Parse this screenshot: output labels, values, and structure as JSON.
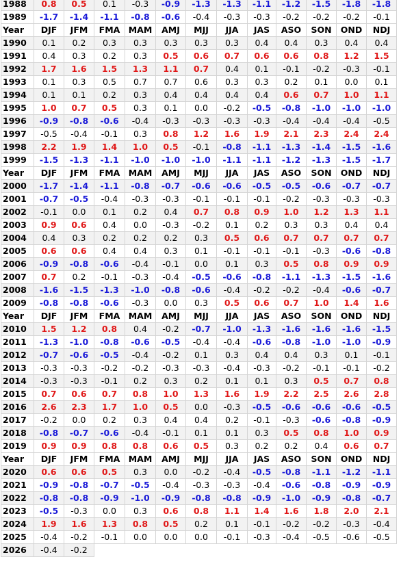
{
  "seasons": [
    "DJF",
    "JFM",
    "FMA",
    "MAM",
    "AMJ",
    "MJJ",
    "JJA",
    "JAS",
    "ASO",
    "SON",
    "OND",
    "NDJ"
  ],
  "header_label": "Year",
  "colors": {
    "warm": "#e01818",
    "cool": "#1a1ad8",
    "neutral": "#000000"
  },
  "rows": [
    {
      "year": "1988",
      "values": [
        "0.8",
        "0.5",
        "0.1",
        "-0.3",
        "-0.9",
        "-1.3",
        "-1.3",
        "-1.1",
        "-1.2",
        "-1.5",
        "-1.8",
        "-1.8"
      ],
      "phase": [
        "w",
        "w",
        "n",
        "n",
        "c",
        "c",
        "c",
        "c",
        "c",
        "c",
        "c",
        "c"
      ]
    },
    {
      "year": "1989",
      "values": [
        "-1.7",
        "-1.4",
        "-1.1",
        "-0.8",
        "-0.6",
        "-0.4",
        "-0.3",
        "-0.3",
        "-0.2",
        "-0.2",
        "-0.2",
        "-0.1"
      ],
      "phase": [
        "c",
        "c",
        "c",
        "c",
        "c",
        "n",
        "n",
        "n",
        "n",
        "n",
        "n",
        "n"
      ]
    },
    {
      "header": true
    },
    {
      "year": "1990",
      "values": [
        "0.1",
        "0.2",
        "0.3",
        "0.3",
        "0.3",
        "0.3",
        "0.3",
        "0.4",
        "0.4",
        "0.3",
        "0.4",
        "0.4"
      ],
      "phase": [
        "n",
        "n",
        "n",
        "n",
        "n",
        "n",
        "n",
        "n",
        "n",
        "n",
        "n",
        "n"
      ]
    },
    {
      "year": "1991",
      "values": [
        "0.4",
        "0.3",
        "0.2",
        "0.3",
        "0.5",
        "0.6",
        "0.7",
        "0.6",
        "0.6",
        "0.8",
        "1.2",
        "1.5"
      ],
      "phase": [
        "n",
        "n",
        "n",
        "n",
        "w",
        "w",
        "w",
        "w",
        "w",
        "w",
        "w",
        "w"
      ]
    },
    {
      "year": "1992",
      "values": [
        "1.7",
        "1.6",
        "1.5",
        "1.3",
        "1.1",
        "0.7",
        "0.4",
        "0.1",
        "-0.1",
        "-0.2",
        "-0.3",
        "-0.1"
      ],
      "phase": [
        "w",
        "w",
        "w",
        "w",
        "w",
        "w",
        "n",
        "n",
        "n",
        "n",
        "n",
        "n"
      ]
    },
    {
      "year": "1993",
      "values": [
        "0.1",
        "0.3",
        "0.5",
        "0.7",
        "0.7",
        "0.6",
        "0.3",
        "0.3",
        "0.2",
        "0.1",
        "0.0",
        "0.1"
      ],
      "phase": [
        "n",
        "n",
        "n",
        "n",
        "n",
        "n",
        "n",
        "n",
        "n",
        "n",
        "n",
        "n"
      ]
    },
    {
      "year": "1994",
      "values": [
        "0.1",
        "0.1",
        "0.2",
        "0.3",
        "0.4",
        "0.4",
        "0.4",
        "0.4",
        "0.6",
        "0.7",
        "1.0",
        "1.1"
      ],
      "phase": [
        "n",
        "n",
        "n",
        "n",
        "n",
        "n",
        "n",
        "n",
        "w",
        "w",
        "w",
        "w"
      ]
    },
    {
      "year": "1995",
      "values": [
        "1.0",
        "0.7",
        "0.5",
        "0.3",
        "0.1",
        "0.0",
        "-0.2",
        "-0.5",
        "-0.8",
        "-1.0",
        "-1.0",
        "-1.0"
      ],
      "phase": [
        "w",
        "w",
        "w",
        "n",
        "n",
        "n",
        "n",
        "c",
        "c",
        "c",
        "c",
        "c"
      ]
    },
    {
      "year": "1996",
      "values": [
        "-0.9",
        "-0.8",
        "-0.6",
        "-0.4",
        "-0.3",
        "-0.3",
        "-0.3",
        "-0.3",
        "-0.4",
        "-0.4",
        "-0.4",
        "-0.5"
      ],
      "phase": [
        "c",
        "c",
        "c",
        "n",
        "n",
        "n",
        "n",
        "n",
        "n",
        "n",
        "n",
        "n"
      ]
    },
    {
      "year": "1997",
      "values": [
        "-0.5",
        "-0.4",
        "-0.1",
        "0.3",
        "0.8",
        "1.2",
        "1.6",
        "1.9",
        "2.1",
        "2.3",
        "2.4",
        "2.4"
      ],
      "phase": [
        "n",
        "n",
        "n",
        "n",
        "w",
        "w",
        "w",
        "w",
        "w",
        "w",
        "w",
        "w"
      ]
    },
    {
      "year": "1998",
      "values": [
        "2.2",
        "1.9",
        "1.4",
        "1.0",
        "0.5",
        "-0.1",
        "-0.8",
        "-1.1",
        "-1.3",
        "-1.4",
        "-1.5",
        "-1.6"
      ],
      "phase": [
        "w",
        "w",
        "w",
        "w",
        "w",
        "n",
        "c",
        "c",
        "c",
        "c",
        "c",
        "c"
      ]
    },
    {
      "year": "1999",
      "values": [
        "-1.5",
        "-1.3",
        "-1.1",
        "-1.0",
        "-1.0",
        "-1.0",
        "-1.1",
        "-1.1",
        "-1.2",
        "-1.3",
        "-1.5",
        "-1.7"
      ],
      "phase": [
        "c",
        "c",
        "c",
        "c",
        "c",
        "c",
        "c",
        "c",
        "c",
        "c",
        "c",
        "c"
      ]
    },
    {
      "header": true
    },
    {
      "year": "2000",
      "values": [
        "-1.7",
        "-1.4",
        "-1.1",
        "-0.8",
        "-0.7",
        "-0.6",
        "-0.6",
        "-0.5",
        "-0.5",
        "-0.6",
        "-0.7",
        "-0.7"
      ],
      "phase": [
        "c",
        "c",
        "c",
        "c",
        "c",
        "c",
        "c",
        "c",
        "c",
        "c",
        "c",
        "c"
      ]
    },
    {
      "year": "2001",
      "values": [
        "-0.7",
        "-0.5",
        "-0.4",
        "-0.3",
        "-0.3",
        "-0.1",
        "-0.1",
        "-0.1",
        "-0.2",
        "-0.3",
        "-0.3",
        "-0.3"
      ],
      "phase": [
        "c",
        "c",
        "n",
        "n",
        "n",
        "n",
        "n",
        "n",
        "n",
        "n",
        "n",
        "n"
      ]
    },
    {
      "year": "2002",
      "values": [
        "-0.1",
        "0.0",
        "0.1",
        "0.2",
        "0.4",
        "0.7",
        "0.8",
        "0.9",
        "1.0",
        "1.2",
        "1.3",
        "1.1"
      ],
      "phase": [
        "n",
        "n",
        "n",
        "n",
        "n",
        "w",
        "w",
        "w",
        "w",
        "w",
        "w",
        "w"
      ]
    },
    {
      "year": "2003",
      "values": [
        "0.9",
        "0.6",
        "0.4",
        "0.0",
        "-0.3",
        "-0.2",
        "0.1",
        "0.2",
        "0.3",
        "0.3",
        "0.4",
        "0.4"
      ],
      "phase": [
        "w",
        "w",
        "n",
        "n",
        "n",
        "n",
        "n",
        "n",
        "n",
        "n",
        "n",
        "n"
      ]
    },
    {
      "year": "2004",
      "values": [
        "0.4",
        "0.3",
        "0.2",
        "0.2",
        "0.2",
        "0.3",
        "0.5",
        "0.6",
        "0.7",
        "0.7",
        "0.7",
        "0.7"
      ],
      "phase": [
        "n",
        "n",
        "n",
        "n",
        "n",
        "n",
        "w",
        "w",
        "w",
        "w",
        "w",
        "w"
      ]
    },
    {
      "year": "2005",
      "values": [
        "0.6",
        "0.6",
        "0.4",
        "0.4",
        "0.3",
        "0.1",
        "-0.1",
        "-0.1",
        "-0.1",
        "-0.3",
        "-0.6",
        "-0.8"
      ],
      "phase": [
        "w",
        "w",
        "n",
        "n",
        "n",
        "n",
        "n",
        "n",
        "n",
        "n",
        "c",
        "c"
      ]
    },
    {
      "year": "2006",
      "values": [
        "-0.9",
        "-0.8",
        "-0.6",
        "-0.4",
        "-0.1",
        "0.0",
        "0.1",
        "0.3",
        "0.5",
        "0.8",
        "0.9",
        "0.9"
      ],
      "phase": [
        "c",
        "c",
        "c",
        "n",
        "n",
        "n",
        "n",
        "n",
        "w",
        "w",
        "w",
        "w"
      ]
    },
    {
      "year": "2007",
      "values": [
        "0.7",
        "0.2",
        "-0.1",
        "-0.3",
        "-0.4",
        "-0.5",
        "-0.6",
        "-0.8",
        "-1.1",
        "-1.3",
        "-1.5",
        "-1.6"
      ],
      "phase": [
        "w",
        "n",
        "n",
        "n",
        "n",
        "c",
        "c",
        "c",
        "c",
        "c",
        "c",
        "c"
      ]
    },
    {
      "year": "2008",
      "values": [
        "-1.6",
        "-1.5",
        "-1.3",
        "-1.0",
        "-0.8",
        "-0.6",
        "-0.4",
        "-0.2",
        "-0.2",
        "-0.4",
        "-0.6",
        "-0.7"
      ],
      "phase": [
        "c",
        "c",
        "c",
        "c",
        "c",
        "c",
        "n",
        "n",
        "n",
        "n",
        "c",
        "c"
      ]
    },
    {
      "year": "2009",
      "values": [
        "-0.8",
        "-0.8",
        "-0.6",
        "-0.3",
        "0.0",
        "0.3",
        "0.5",
        "0.6",
        "0.7",
        "1.0",
        "1.4",
        "1.6"
      ],
      "phase": [
        "c",
        "c",
        "c",
        "n",
        "n",
        "n",
        "w",
        "w",
        "w",
        "w",
        "w",
        "w"
      ]
    },
    {
      "header": true
    },
    {
      "year": "2010",
      "values": [
        "1.5",
        "1.2",
        "0.8",
        "0.4",
        "-0.2",
        "-0.7",
        "-1.0",
        "-1.3",
        "-1.6",
        "-1.6",
        "-1.6",
        "-1.5"
      ],
      "phase": [
        "w",
        "w",
        "w",
        "n",
        "n",
        "c",
        "c",
        "c",
        "c",
        "c",
        "c",
        "c"
      ]
    },
    {
      "year": "2011",
      "values": [
        "-1.3",
        "-1.0",
        "-0.8",
        "-0.6",
        "-0.5",
        "-0.4",
        "-0.4",
        "-0.6",
        "-0.8",
        "-1.0",
        "-1.0",
        "-0.9"
      ],
      "phase": [
        "c",
        "c",
        "c",
        "c",
        "c",
        "n",
        "n",
        "c",
        "c",
        "c",
        "c",
        "c"
      ]
    },
    {
      "year": "2012",
      "values": [
        "-0.7",
        "-0.6",
        "-0.5",
        "-0.4",
        "-0.2",
        "0.1",
        "0.3",
        "0.4",
        "0.4",
        "0.3",
        "0.1",
        "-0.1"
      ],
      "phase": [
        "c",
        "c",
        "c",
        "n",
        "n",
        "n",
        "n",
        "n",
        "n",
        "n",
        "n",
        "n"
      ]
    },
    {
      "year": "2013",
      "values": [
        "-0.3",
        "-0.3",
        "-0.2",
        "-0.2",
        "-0.3",
        "-0.3",
        "-0.4",
        "-0.3",
        "-0.2",
        "-0.1",
        "-0.1",
        "-0.2"
      ],
      "phase": [
        "n",
        "n",
        "n",
        "n",
        "n",
        "n",
        "n",
        "n",
        "n",
        "n",
        "n",
        "n"
      ]
    },
    {
      "year": "2014",
      "values": [
        "-0.3",
        "-0.3",
        "-0.1",
        "0.2",
        "0.3",
        "0.2",
        "0.1",
        "0.1",
        "0.3",
        "0.5",
        "0.7",
        "0.8"
      ],
      "phase": [
        "n",
        "n",
        "n",
        "n",
        "n",
        "n",
        "n",
        "n",
        "n",
        "w",
        "w",
        "w"
      ]
    },
    {
      "year": "2015",
      "values": [
        "0.7",
        "0.6",
        "0.7",
        "0.8",
        "1.0",
        "1.3",
        "1.6",
        "1.9",
        "2.2",
        "2.5",
        "2.6",
        "2.8"
      ],
      "phase": [
        "w",
        "w",
        "w",
        "w",
        "w",
        "w",
        "w",
        "w",
        "w",
        "w",
        "w",
        "w"
      ]
    },
    {
      "year": "2016",
      "values": [
        "2.6",
        "2.3",
        "1.7",
        "1.0",
        "0.5",
        "0.0",
        "-0.3",
        "-0.5",
        "-0.6",
        "-0.6",
        "-0.6",
        "-0.5"
      ],
      "phase": [
        "w",
        "w",
        "w",
        "w",
        "w",
        "n",
        "n",
        "c",
        "c",
        "c",
        "c",
        "c"
      ]
    },
    {
      "year": "2017",
      "values": [
        "-0.2",
        "0.0",
        "0.2",
        "0.3",
        "0.4",
        "0.4",
        "0.2",
        "-0.1",
        "-0.3",
        "-0.6",
        "-0.8",
        "-0.9"
      ],
      "phase": [
        "n",
        "n",
        "n",
        "n",
        "n",
        "n",
        "n",
        "n",
        "n",
        "c",
        "c",
        "c"
      ]
    },
    {
      "year": "2018",
      "values": [
        "-0.8",
        "-0.7",
        "-0.6",
        "-0.4",
        "-0.1",
        "0.1",
        "0.1",
        "0.3",
        "0.5",
        "0.8",
        "1.0",
        "0.9"
      ],
      "phase": [
        "c",
        "c",
        "c",
        "n",
        "n",
        "n",
        "n",
        "n",
        "w",
        "w",
        "w",
        "w"
      ]
    },
    {
      "year": "2019",
      "values": [
        "0.9",
        "0.9",
        "0.8",
        "0.8",
        "0.6",
        "0.5",
        "0.3",
        "0.2",
        "0.2",
        "0.4",
        "0.6",
        "0.7"
      ],
      "phase": [
        "w",
        "w",
        "w",
        "w",
        "w",
        "w",
        "n",
        "n",
        "n",
        "n",
        "w",
        "w"
      ]
    },
    {
      "header": true
    },
    {
      "year": "2020",
      "values": [
        "0.6",
        "0.6",
        "0.5",
        "0.3",
        "0.0",
        "-0.2",
        "-0.4",
        "-0.5",
        "-0.8",
        "-1.1",
        "-1.2",
        "-1.1"
      ],
      "phase": [
        "w",
        "w",
        "w",
        "n",
        "n",
        "n",
        "n",
        "c",
        "c",
        "c",
        "c",
        "c"
      ]
    },
    {
      "year": "2021",
      "values": [
        "-0.9",
        "-0.8",
        "-0.7",
        "-0.5",
        "-0.4",
        "-0.3",
        "-0.3",
        "-0.4",
        "-0.6",
        "-0.8",
        "-0.9",
        "-0.9"
      ],
      "phase": [
        "c",
        "c",
        "c",
        "c",
        "n",
        "n",
        "n",
        "n",
        "c",
        "c",
        "c",
        "c"
      ]
    },
    {
      "year": "2022",
      "values": [
        "-0.8",
        "-0.8",
        "-0.9",
        "-1.0",
        "-0.9",
        "-0.8",
        "-0.8",
        "-0.9",
        "-1.0",
        "-0.9",
        "-0.8",
        "-0.7"
      ],
      "phase": [
        "c",
        "c",
        "c",
        "c",
        "c",
        "c",
        "c",
        "c",
        "c",
        "c",
        "c",
        "c"
      ]
    },
    {
      "year": "2023",
      "values": [
        "-0.5",
        "-0.3",
        "0.0",
        "0.3",
        "0.6",
        "0.8",
        "1.1",
        "1.4",
        "1.6",
        "1.8",
        "2.0",
        "2.1"
      ],
      "phase": [
        "c",
        "n",
        "n",
        "n",
        "w",
        "w",
        "w",
        "w",
        "w",
        "w",
        "w",
        "w"
      ]
    },
    {
      "year": "2024",
      "values": [
        "1.9",
        "1.6",
        "1.3",
        "0.8",
        "0.5",
        "0.2",
        "0.1",
        "-0.1",
        "-0.2",
        "-0.2",
        "-0.3",
        "-0.4"
      ],
      "phase": [
        "w",
        "w",
        "w",
        "w",
        "w",
        "n",
        "n",
        "n",
        "n",
        "n",
        "n",
        "n"
      ]
    },
    {
      "year": "2025",
      "values": [
        "-0.4",
        "-0.2",
        "-0.1",
        "0.0",
        "0.0",
        "0.0",
        "-0.1",
        "-0.3",
        "-0.4",
        "-0.5",
        "-0.6",
        "-0.5"
      ],
      "phase": [
        "n",
        "n",
        "n",
        "n",
        "n",
        "n",
        "n",
        "n",
        "n",
        "n",
        "n",
        "n"
      ]
    },
    {
      "year": "2026",
      "values": [
        "-0.4",
        "-0.2"
      ],
      "phase": [
        "n",
        "n"
      ]
    }
  ]
}
